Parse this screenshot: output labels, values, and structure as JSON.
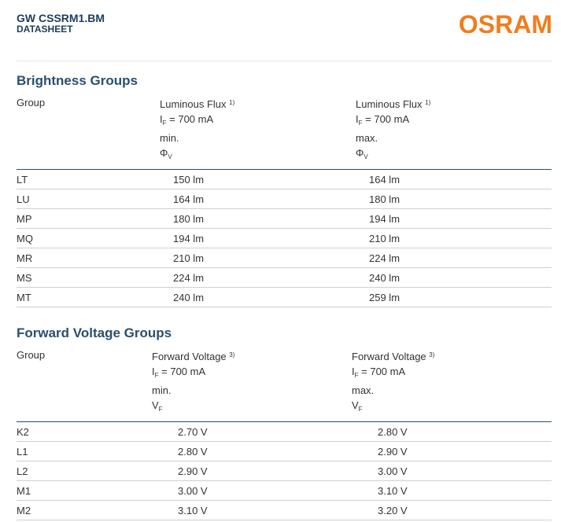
{
  "header": {
    "product": "GW CSSRM1.BM",
    "doc_type": "DATASHEET",
    "logo_text": "OSRAM",
    "logo_color": "#f07d1b"
  },
  "brightness": {
    "title": "Brightness Groups",
    "col_group": "Group",
    "min_col": {
      "label": "Luminous Flux",
      "note": "1)",
      "cond_sym": "I",
      "cond_sub": "F",
      "cond_val": "= 700 mA",
      "limit": "min.",
      "sym": "Φ",
      "sym_sub": "V"
    },
    "max_col": {
      "label": "Luminous Flux",
      "note": "1)",
      "cond_sym": "I",
      "cond_sub": "F",
      "cond_val": "= 700 mA",
      "limit": "max.",
      "sym": "Φ",
      "sym_sub": "V"
    },
    "rows": [
      {
        "group": "LT",
        "min": "150 lm",
        "max": "164 lm"
      },
      {
        "group": "LU",
        "min": "164 lm",
        "max": "180 lm"
      },
      {
        "group": "MP",
        "min": "180 lm",
        "max": "194 lm"
      },
      {
        "group": "MQ",
        "min": "194 lm",
        "max": "210 lm"
      },
      {
        "group": "MR",
        "min": "210 lm",
        "max": "224 lm"
      },
      {
        "group": "MS",
        "min": "224 lm",
        "max": "240 lm"
      },
      {
        "group": "MT",
        "min": "240 lm",
        "max": "259 lm"
      }
    ]
  },
  "voltage": {
    "title": "Forward Voltage Groups",
    "col_group": "Group",
    "min_col": {
      "label": "Forward Voltage",
      "note": "3)",
      "cond_sym": "I",
      "cond_sub": "F",
      "cond_val": "= 700 mA",
      "limit": "min.",
      "sym": "V",
      "sym_sub": "F"
    },
    "max_col": {
      "label": "Forward Voltage",
      "note": "3)",
      "cond_sym": "I",
      "cond_sub": "F",
      "cond_val": "= 700 mA",
      "limit": "max.",
      "sym": "V",
      "sym_sub": "F"
    },
    "rows": [
      {
        "group": "K2",
        "min": "2.70 V",
        "max": "2.80 V"
      },
      {
        "group": "L1",
        "min": "2.80 V",
        "max": "2.90 V"
      },
      {
        "group": "L2",
        "min": "2.90 V",
        "max": "3.00 V"
      },
      {
        "group": "M1",
        "min": "3.00 V",
        "max": "3.10 V"
      },
      {
        "group": "M2",
        "min": "3.10 V",
        "max": "3.20 V"
      }
    ]
  }
}
